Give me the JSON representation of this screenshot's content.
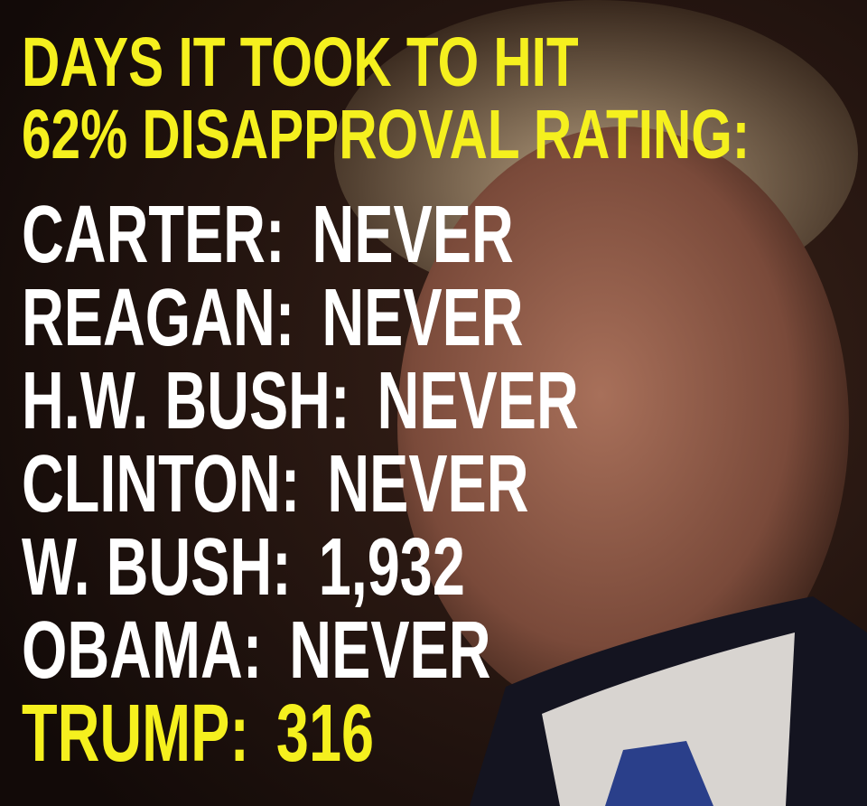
{
  "header": {
    "lines": [
      "DAYS IT TOOK TO HIT",
      "62% DISAPPROVAL RATING:"
    ]
  },
  "rows": [
    {
      "label": "CARTER:",
      "value": "NEVER"
    },
    {
      "label": "REAGAN:",
      "value": "NEVER"
    },
    {
      "label": "H.W. BUSH:",
      "value": "NEVER"
    },
    {
      "label": "CLINTON:",
      "value": "NEVER"
    },
    {
      "label": "W. BUSH:",
      "value": "1,932"
    },
    {
      "label": "OBAMA:",
      "value": "NEVER"
    },
    {
      "label": "TRUMP:",
      "value": "316"
    }
  ]
}
